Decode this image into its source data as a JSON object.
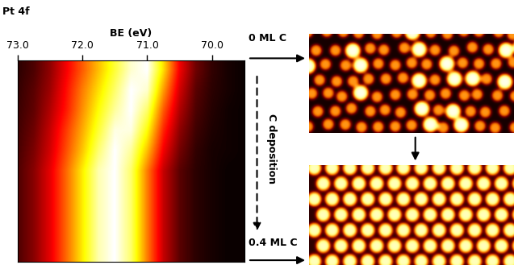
{
  "chart_data": {
    "type": "heatmap",
    "title": "Pt 4f",
    "x_label": "BE (eV)",
    "x": [
      73.0,
      72.75,
      72.5,
      72.25,
      72.0,
      71.75,
      71.5,
      71.25,
      71.0,
      70.75,
      70.5,
      70.25,
      70.0,
      69.75,
      69.5
    ],
    "cells": [
      [
        0.05,
        0.1,
        0.2,
        0.35,
        0.5,
        0.65,
        0.8,
        0.95,
        1.0,
        0.7,
        0.35,
        0.15,
        0.06,
        0.02,
        0.0
      ],
      [
        0.06,
        0.12,
        0.22,
        0.38,
        0.55,
        0.7,
        0.85,
        1.0,
        0.95,
        0.6,
        0.3,
        0.12,
        0.05,
        0.02,
        0.0
      ],
      [
        0.07,
        0.13,
        0.25,
        0.4,
        0.58,
        0.75,
        0.9,
        1.0,
        0.85,
        0.5,
        0.25,
        0.1,
        0.04,
        0.01,
        0.0
      ],
      [
        0.08,
        0.15,
        0.28,
        0.45,
        0.62,
        0.8,
        0.97,
        0.97,
        0.75,
        0.42,
        0.2,
        0.08,
        0.03,
        0.01,
        0.0
      ],
      [
        0.09,
        0.17,
        0.3,
        0.48,
        0.66,
        0.86,
        1.0,
        0.9,
        0.65,
        0.35,
        0.16,
        0.06,
        0.02,
        0.01,
        0.0
      ],
      [
        0.1,
        0.19,
        0.33,
        0.52,
        0.72,
        0.92,
        1.0,
        0.85,
        0.55,
        0.28,
        0.12,
        0.05,
        0.02,
        0.0,
        0.0
      ],
      [
        0.1,
        0.19,
        0.33,
        0.52,
        0.72,
        0.92,
        1.0,
        0.85,
        0.55,
        0.28,
        0.12,
        0.05,
        0.02,
        0.0,
        0.0
      ],
      [
        0.1,
        0.19,
        0.33,
        0.52,
        0.72,
        0.92,
        1.0,
        0.85,
        0.55,
        0.28,
        0.12,
        0.05,
        0.02,
        0.0,
        0.0
      ],
      [
        0.1,
        0.19,
        0.33,
        0.52,
        0.72,
        0.92,
        1.0,
        0.85,
        0.55,
        0.28,
        0.12,
        0.05,
        0.02,
        0.0,
        0.0
      ],
      [
        0.1,
        0.19,
        0.33,
        0.52,
        0.72,
        0.92,
        1.0,
        0.85,
        0.55,
        0.28,
        0.12,
        0.05,
        0.02,
        0.0,
        0.0
      ]
    ],
    "color_range": [
      0,
      1
    ],
    "xlim": [
      73.0,
      69.5
    ],
    "xticks": [
      73.0,
      72.0,
      71.0,
      70.0
    ],
    "tick_labels": "x",
    "annotations": {
      "start": "0 ML C",
      "process": "C deposition",
      "end": "0.4 ML C"
    }
  }
}
